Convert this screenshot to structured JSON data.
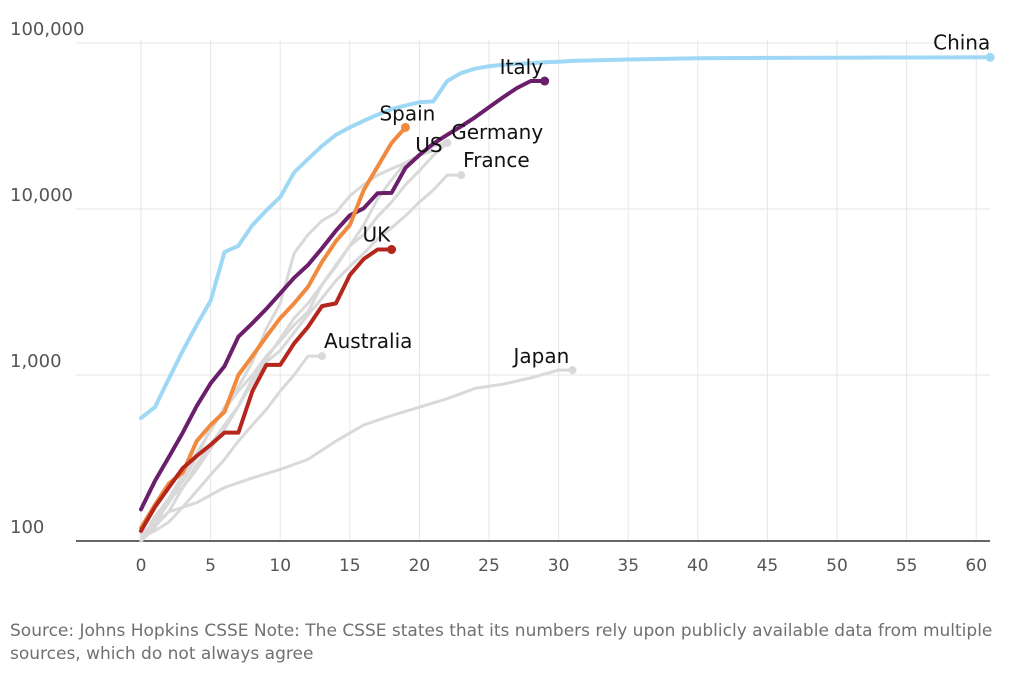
{
  "chart_data": {
    "type": "line",
    "title": "",
    "xlabel": "",
    "ylabel": "",
    "y_scale": "log",
    "xlim": [
      -5,
      61
    ],
    "ylim": [
      100,
      100000
    ],
    "x_ticks": [
      "0",
      "5",
      "10",
      "15",
      "20",
      "25",
      "30",
      "35",
      "40",
      "45",
      "50",
      "55",
      "60"
    ],
    "y_ticks": [
      "100",
      "1,000",
      "10,000",
      "100,000"
    ],
    "gridlines": true,
    "series": [
      {
        "name": "China",
        "color": "#9fd8f5",
        "highlight": true,
        "x": [
          0,
          1,
          2,
          3,
          4,
          5,
          6,
          7,
          8,
          9,
          10,
          11,
          12,
          13,
          14,
          15,
          16,
          17,
          18,
          19,
          20,
          21,
          22,
          23,
          24,
          25,
          26,
          27,
          28,
          29,
          30,
          31,
          35,
          40,
          45,
          50,
          55,
          61
        ],
        "y": [
          550,
          640,
          950,
          1400,
          2000,
          2800,
          5500,
          6000,
          8000,
          9800,
          11800,
          16600,
          20000,
          24000,
          28000,
          31000,
          34000,
          37000,
          40000,
          42000,
          44000,
          44500,
          59000,
          66000,
          70000,
          72500,
          74000,
          75000,
          75500,
          76500,
          77000,
          78000,
          79500,
          80900,
          81300,
          81600,
          81800,
          82000
        ]
      },
      {
        "name": "Italy",
        "color": "#6b1f6b",
        "highlight": true,
        "x": [
          0,
          1,
          2,
          3,
          4,
          5,
          6,
          7,
          8,
          9,
          10,
          11,
          12,
          13,
          14,
          15,
          16,
          17,
          18,
          19,
          20,
          21,
          22,
          23,
          24,
          25,
          26,
          27,
          28,
          29
        ],
        "y": [
          155,
          230,
          320,
          450,
          650,
          890,
          1130,
          1700,
          2050,
          2500,
          3100,
          3850,
          4600,
          5800,
          7400,
          9150,
          10100,
          12450,
          12500,
          17700,
          21150,
          24750,
          27980,
          31500,
          35700,
          41000,
          47000,
          53500,
          59000,
          59000
        ]
      },
      {
        "name": "Spain",
        "color": "#f08a3e",
        "highlight": true,
        "x": [
          0,
          1,
          2,
          3,
          4,
          5,
          6,
          7,
          8,
          9,
          10,
          11,
          12,
          13,
          14,
          15,
          16,
          17,
          18,
          19
        ],
        "y": [
          120,
          165,
          222,
          259,
          400,
          500,
          600,
          1000,
          1300,
          1700,
          2200,
          2700,
          3400,
          4800,
          6400,
          8000,
          13000,
          18000,
          25000,
          31000
        ]
      },
      {
        "name": "UK",
        "color": "#b5271d",
        "highlight": true,
        "x": [
          0,
          1,
          2,
          3,
          4,
          5,
          6,
          7,
          8,
          9,
          10,
          11,
          12,
          13,
          14,
          15,
          16,
          17,
          18
        ],
        "y": [
          115,
          160,
          210,
          275,
          325,
          380,
          450,
          450,
          800,
          1150,
          1150,
          1550,
          1950,
          2600,
          2700,
          4000,
          5000,
          5700,
          5700
        ]
      },
      {
        "name": "US",
        "color": "#d9d9d9",
        "highlight": false,
        "x": [
          0,
          1,
          2,
          3,
          4,
          5,
          6,
          7,
          8,
          9,
          10,
          11,
          12,
          13,
          14,
          15,
          16,
          17,
          18,
          19,
          20,
          21,
          22
        ],
        "y": [
          100,
          125,
          150,
          210,
          270,
          360,
          470,
          650,
          900,
          1250,
          1650,
          2200,
          2700,
          3500,
          4600,
          6000,
          8000,
          11500,
          15000,
          19000,
          21000,
          24000,
          25000
        ]
      },
      {
        "name": "Germany",
        "color": "#d9d9d9",
        "highlight": false,
        "x": [
          0,
          1,
          2,
          3,
          4,
          5,
          6,
          7,
          8,
          9,
          10,
          11,
          12,
          13,
          14,
          15,
          16,
          17,
          18,
          19,
          20,
          21,
          22
        ],
        "y": [
          110,
          130,
          170,
          230,
          320,
          480,
          620,
          800,
          1000,
          1300,
          1600,
          2000,
          2400,
          3500,
          4500,
          6000,
          7000,
          9000,
          11000,
          14000,
          17000,
          21000,
          25000
        ]
      },
      {
        "name": "France",
        "color": "#d9d9d9",
        "highlight": false,
        "x": [
          0,
          1,
          2,
          3,
          4,
          5,
          6,
          7,
          8,
          9,
          10,
          11,
          12,
          13,
          14,
          15,
          16,
          17,
          18,
          19,
          20,
          21,
          22,
          23
        ],
        "y": [
          100,
          120,
          180,
          210,
          290,
          380,
          500,
          650,
          950,
          1200,
          1400,
          1800,
          2300,
          2900,
          3700,
          4500,
          5400,
          6600,
          7700,
          9100,
          11000,
          13000,
          16000,
          16000
        ]
      },
      {
        "name": "Australia",
        "color": "#d9d9d9",
        "highlight": false,
        "x": [
          0,
          1,
          2,
          3,
          4,
          5,
          6,
          7,
          8,
          9,
          10,
          11,
          12,
          13
        ],
        "y": [
          105,
          115,
          130,
          160,
          200,
          250,
          310,
          400,
          500,
          620,
          800,
          1000,
          1300,
          1300
        ]
      },
      {
        "name": "Japan",
        "color": "#d9d9d9",
        "highlight": false,
        "x": [
          0,
          2,
          4,
          6,
          8,
          10,
          12,
          14,
          16,
          18,
          20,
          22,
          24,
          26,
          28,
          30,
          31
        ],
        "y": [
          100,
          150,
          170,
          210,
          240,
          270,
          310,
          400,
          500,
          570,
          640,
          720,
          830,
          880,
          960,
          1070,
          1070
        ]
      },
      {
        "name": "",
        "color": "#d9d9d9",
        "highlight": false,
        "x": [
          0,
          1,
          2,
          3,
          4,
          5,
          6,
          7,
          8,
          9,
          10,
          11,
          12,
          13,
          14,
          15,
          16,
          17,
          18,
          19,
          20,
          21
        ],
        "y": [
          100,
          140,
          180,
          250,
          340,
          460,
          640,
          850,
          1200,
          1900,
          2700,
          5400,
          7000,
          8500,
          9500,
          12000,
          14000,
          16000,
          17500,
          19000,
          21000,
          22500
        ]
      }
    ]
  },
  "source_note": "Source: Johns Hopkins CSSE Note: The CSSE states that its numbers rely upon publicly available data from multiple sources, which do not always agree"
}
